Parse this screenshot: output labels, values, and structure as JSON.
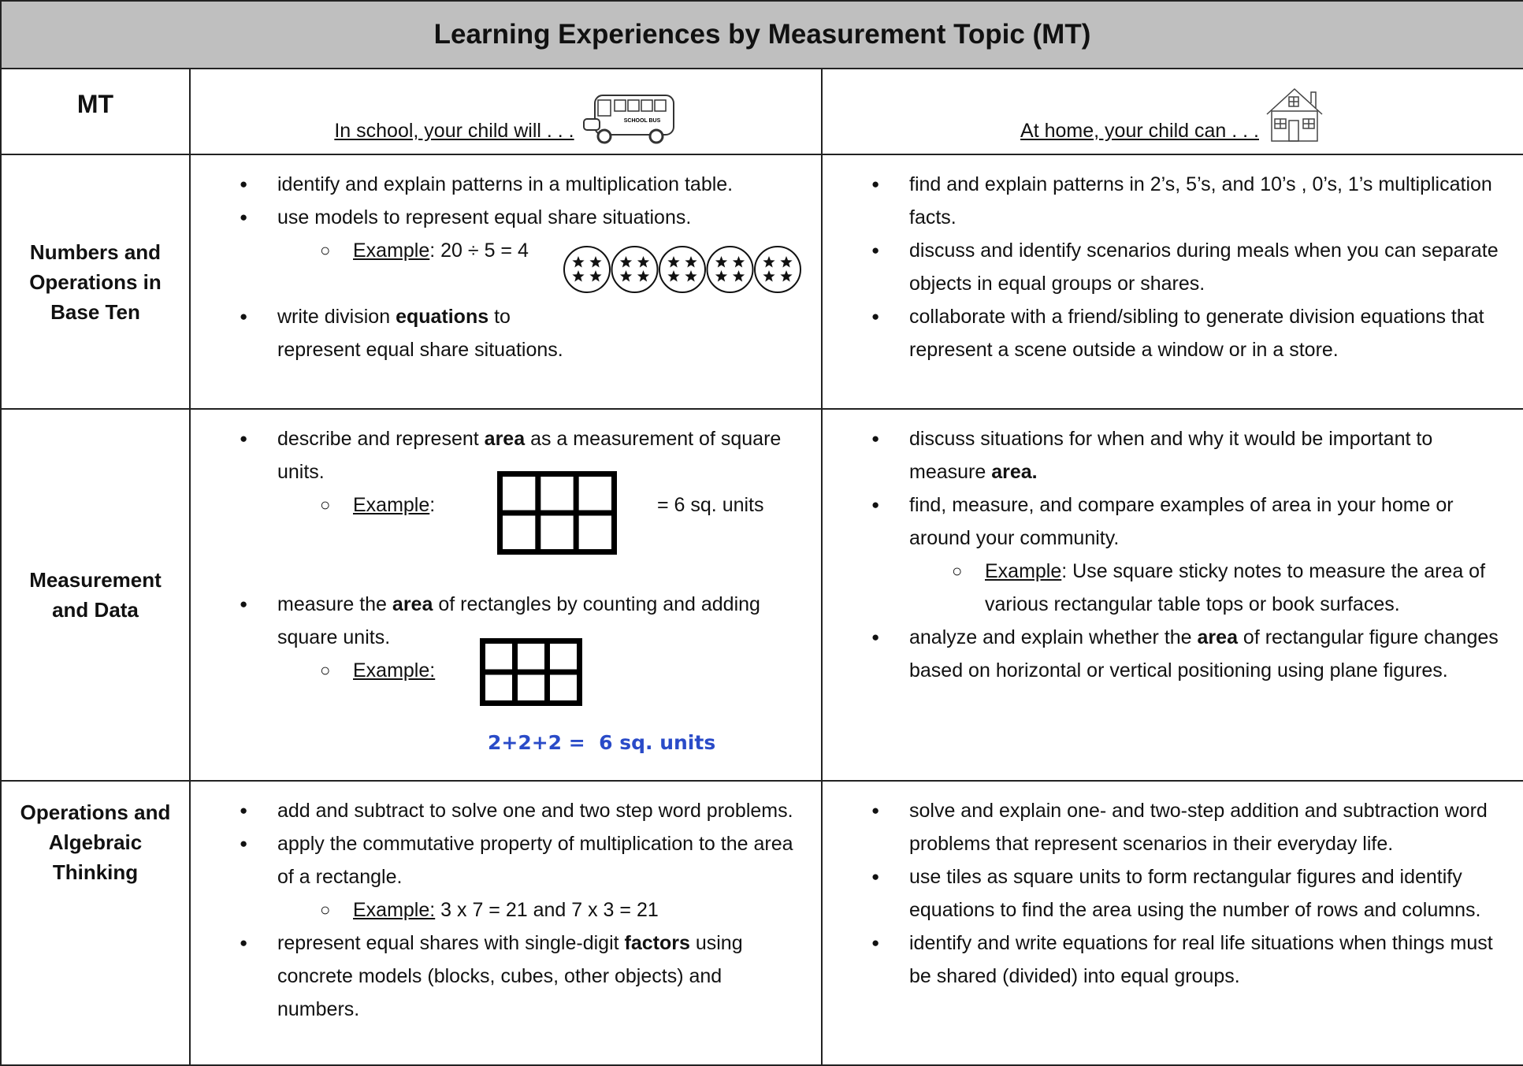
{
  "title": "Learning Experiences by  Measurement Topic (MT)",
  "header": {
    "mt": "MT",
    "school": "In school, your child will . . .",
    "bus_label": "SCHOOL BUS",
    "home": "At home, your child can . . ."
  },
  "rows": [
    {
      "topic": "Numbers and Operations in Base Ten",
      "school": [
        [
          "identify and explain patterns in a multiplication table."
        ],
        [
          "use models to represent equal share situations."
        ],
        [
          "Example",
          ": 20 ÷ 5 = 4"
        ],
        [
          "write division ",
          "equations",
          " to",
          "represent equal share situations."
        ]
      ],
      "home": [
        [
          "find and explain patterns in  2’s, 5’s, and 10’s , 0’s, 1’s multiplication facts."
        ],
        [
          "discuss and identify scenarios during meals when you can separate objects in equal groups or shares."
        ],
        [
          "collaborate with a friend/sibling to generate division equations that represent a scene outside a window or in a store."
        ]
      ]
    },
    {
      "topic": "Measurement and Data",
      "school": [
        [
          "describe and represent ",
          "area",
          " as a measurement of square units."
        ],
        [
          "Example",
          ":"
        ],
        [
          "measure the ",
          "area",
          " of rectangles by counting and adding square units."
        ],
        [
          "Example:"
        ]
      ],
      "figures": [
        "= 6 sq. units",
        "2+2+2 =  6 sq. units"
      ],
      "home": [
        [
          "discuss situations for when and why it would be important to measure ",
          "area."
        ],
        [
          "find, measure, and compare examples of area in your home or around your community."
        ],
        [
          "Example",
          ": Use square sticky notes to measure the area of various rectangular table tops or book surfaces."
        ],
        [
          "analyze and explain whether the ",
          "area",
          " of rectangular figure changes based on horizontal or vertical positioning using plane figures."
        ]
      ]
    },
    {
      "topic": "Operations and Algebraic Thinking",
      "school": [
        [
          "add and subtract to solve one and two step word problems."
        ],
        [
          "apply the commutative property of multiplication to the area of a rectangle."
        ],
        [
          "Example:",
          " 3 x 7 = 21 and 7 x 3 = 21"
        ],
        [
          "represent equal shares with single-digit ",
          "factors",
          " using concrete models (blocks, cubes, other objects) and numbers."
        ]
      ],
      "home": [
        [
          "solve and explain one- and two-step addition and subtraction word problems that represent scenarios in their everyday life."
        ],
        [
          "use tiles as square units to form rectangular figures and identify equations to find the area using the number of rows and columns."
        ],
        [
          "identify and write equations for real life situations when things must be shared (divided) into equal groups."
        ]
      ]
    }
  ]
}
